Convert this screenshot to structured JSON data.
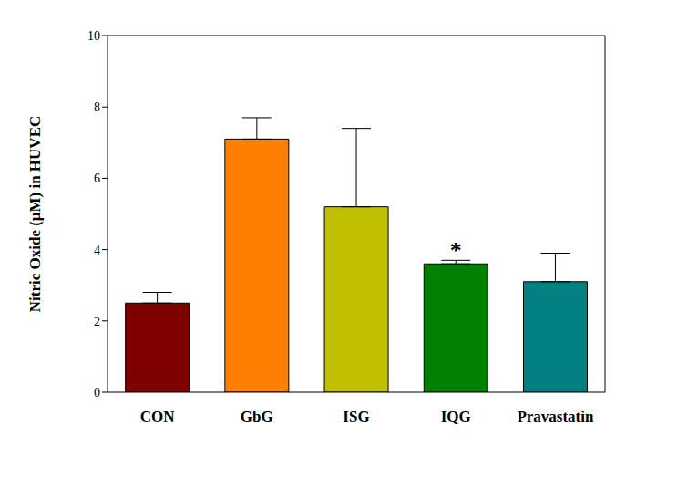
{
  "chart_data": {
    "type": "bar",
    "y_label": "Nitric Oxide (μM) in HUVEC",
    "categories": [
      "CON",
      "GbG",
      "ISG",
      "IQG",
      "Pravastatin"
    ],
    "values": [
      2.5,
      7.1,
      5.2,
      3.6,
      3.1
    ],
    "errors": [
      0.3,
      0.6,
      2.2,
      0.1,
      0.8
    ],
    "colors": [
      "#800000",
      "#ff8000",
      "#c0c000",
      "#008000",
      "#008080"
    ],
    "ylim": [
      0,
      10
    ],
    "yticks": [
      0,
      2,
      4,
      6,
      8,
      10
    ],
    "grid": false,
    "annotations": [
      {
        "text": "*",
        "category": "IQG"
      }
    ]
  }
}
